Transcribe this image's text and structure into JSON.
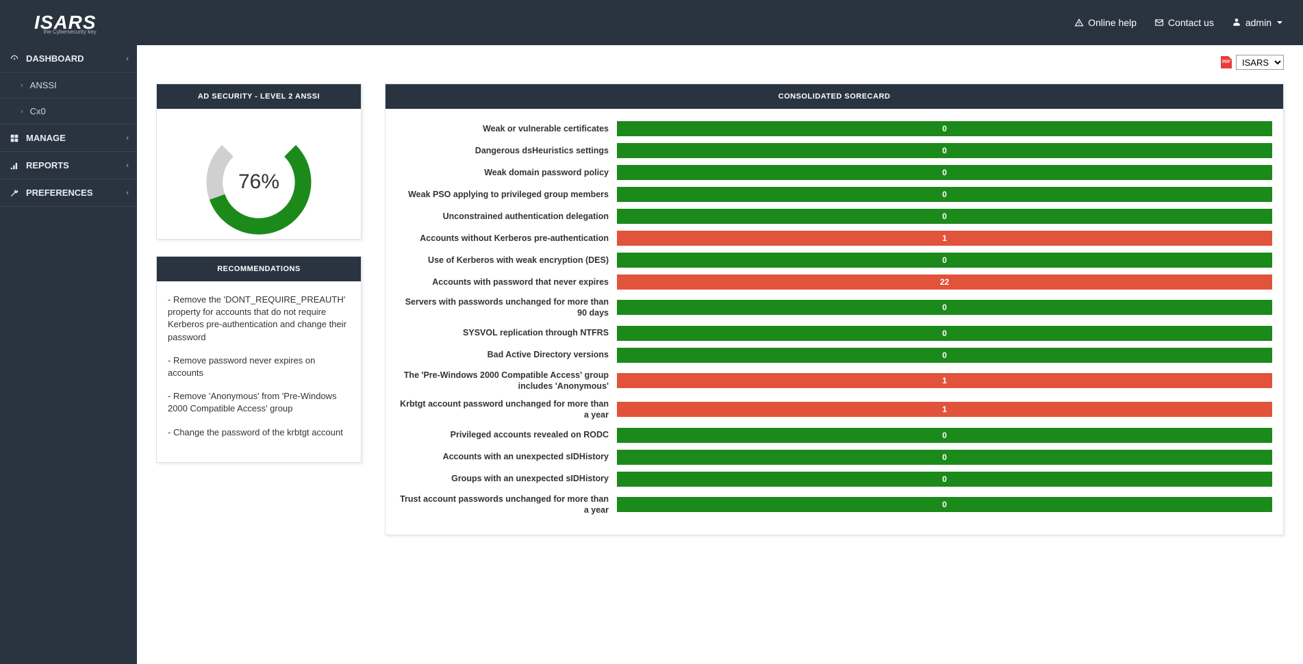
{
  "brand": {
    "name": "ISARS",
    "tagline": "the Cybersecurity key"
  },
  "topbar": {
    "help": "Online help",
    "contact": "Contact us",
    "user": "admin"
  },
  "sidebar": {
    "items": [
      {
        "label": "DASHBOARD",
        "icon": "dashboard",
        "expandable": true
      },
      {
        "label": "MANAGE",
        "icon": "grid",
        "expandable": true
      },
      {
        "label": "REPORTS",
        "icon": "chart",
        "expandable": true
      },
      {
        "label": "PREFERENCES",
        "icon": "wrench",
        "expandable": true
      }
    ],
    "dashboard_subs": [
      {
        "label": "ANSSI"
      },
      {
        "label": "Cx0"
      }
    ]
  },
  "toolbar": {
    "selector_options": [
      "ISARS"
    ],
    "selector_value": "ISARS"
  },
  "gauge_panel": {
    "title": "AD SECURITY - LEVEL 2 ANSSI",
    "percent": 76,
    "percent_label": "76%",
    "arc_color": "#1b8a1b",
    "track_color": "#d0d0d0",
    "start_angle_deg": 225,
    "sweep_deg": 270
  },
  "recommendations": {
    "title": "RECOMMENDATIONS",
    "items": [
      "- Remove the 'DONT_REQUIRE_PREAUTH' property for accounts that do not require Kerberos pre-authentication and change their password",
      "- Remove password never expires on accounts",
      "- Remove 'Anonymous' from 'Pre-Windows 2000 Compatible Access' group",
      "- Change the password of the krbtgt account"
    ]
  },
  "scorecard": {
    "title": "CONSOLIDATED SORECARD",
    "ok_color": "#1b8a1b",
    "bad_color": "#e1533b",
    "rows": [
      {
        "label": "Weak or vulnerable certificates",
        "value": 0,
        "status": "ok"
      },
      {
        "label": "Dangerous dsHeuristics settings",
        "value": 0,
        "status": "ok"
      },
      {
        "label": "Weak domain password policy",
        "value": 0,
        "status": "ok"
      },
      {
        "label": "Weak PSO applying to privileged group members",
        "value": 0,
        "status": "ok"
      },
      {
        "label": "Unconstrained authentication delegation",
        "value": 0,
        "status": "ok"
      },
      {
        "label": "Accounts without Kerberos pre-authentication",
        "value": 1,
        "status": "bad"
      },
      {
        "label": "Use of Kerberos with weak encryption (DES)",
        "value": 0,
        "status": "ok"
      },
      {
        "label": "Accounts with password that never expires",
        "value": 22,
        "status": "bad"
      },
      {
        "label": "Servers with passwords unchanged for more than 90 days",
        "value": 0,
        "status": "ok"
      },
      {
        "label": "SYSVOL replication through NTFRS",
        "value": 0,
        "status": "ok"
      },
      {
        "label": "Bad Active Directory versions",
        "value": 0,
        "status": "ok"
      },
      {
        "label": "The 'Pre-Windows 2000 Compatible Access' group includes 'Anonymous'",
        "value": 1,
        "status": "bad"
      },
      {
        "label": "Krbtgt account password unchanged for more than a year",
        "value": 1,
        "status": "bad"
      },
      {
        "label": "Privileged accounts revealed on RODC",
        "value": 0,
        "status": "ok"
      },
      {
        "label": "Accounts with an unexpected sIDHistory",
        "value": 0,
        "status": "ok"
      },
      {
        "label": "Groups with an unexpected sIDHistory",
        "value": 0,
        "status": "ok"
      },
      {
        "label": "Trust account passwords unchanged for more than a year",
        "value": 0,
        "status": "ok"
      }
    ]
  }
}
